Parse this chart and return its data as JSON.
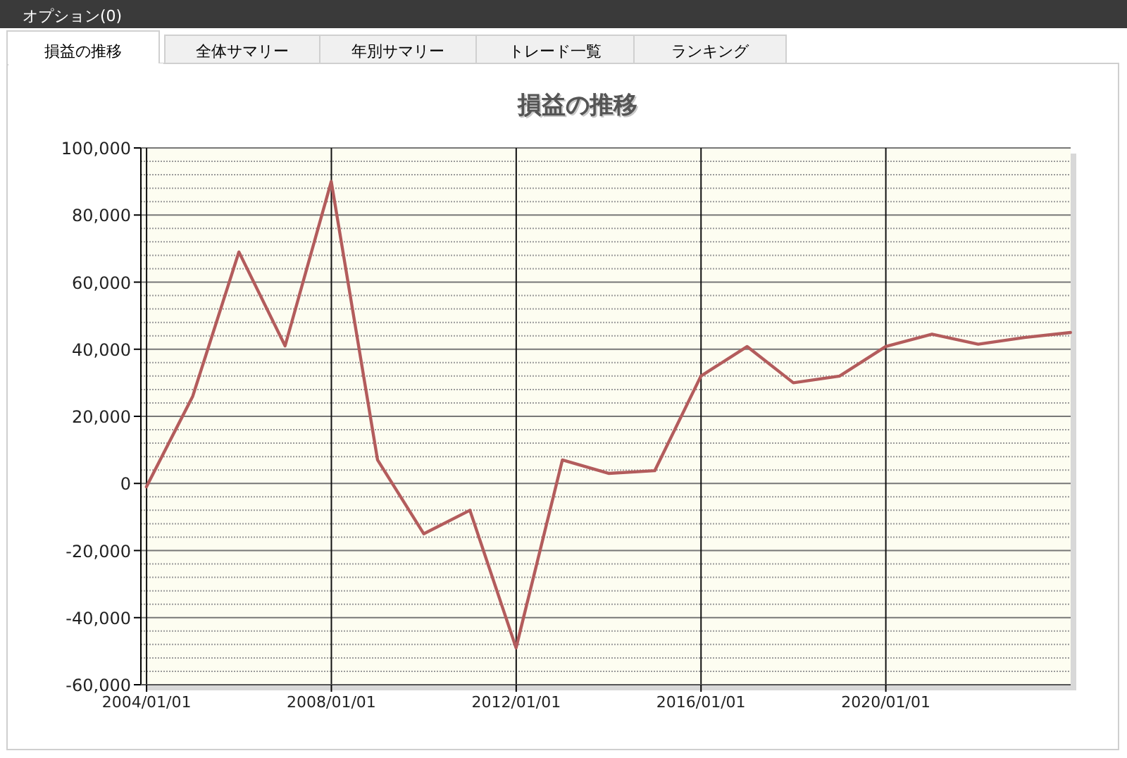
{
  "chart_data": {
    "type": "line",
    "title": "損益の推移",
    "annotations": [
      "オプション(0)",
      "損益の推移",
      "全体サマリー",
      "年別サマリー",
      "トレード一覧",
      "ランキング"
    ],
    "x": [
      "2003-12-31",
      "2004-12-31",
      "2005-12-31",
      "2006-12-31",
      "2007-12-31",
      "2008-12-31",
      "2009-12-31",
      "2010-12-31",
      "2011-12-31",
      "2012-12-31",
      "2013-12-31",
      "2014-12-31",
      "2015-12-31",
      "2016-12-31",
      "2017-12-31",
      "2018-12-31",
      "2019-12-31",
      "2020-12-31",
      "2021-12-31",
      "2022-12-31",
      "2023-12-31"
    ],
    "series": [
      {
        "color": "#b35c5c",
        "values": [
          -1000,
          26000,
          69000,
          41000,
          90000,
          7000,
          -15000,
          -8000,
          -49000,
          7000,
          3000,
          3800,
          32000,
          40800,
          30000,
          32000,
          40800,
          44500,
          41500,
          43500,
          45000
        ]
      }
    ],
    "xlim": [
      "2003-11-17",
      "2024-01-01"
    ],
    "xticks": [
      {
        "value": "2004-01-01",
        "label": "2004/01/01"
      },
      {
        "value": "2008-01-01",
        "label": "2008/01/01"
      },
      {
        "value": "2012-01-01",
        "label": "2012/01/01"
      },
      {
        "value": "2016-01-01",
        "label": "2016/01/01"
      },
      {
        "value": "2020-01-01",
        "label": "2020/01/01"
      }
    ],
    "ylim": [
      -60000,
      100000
    ],
    "yticks": [
      {
        "value": -60000,
        "label": "-60,000"
      },
      {
        "value": -40000,
        "label": "-40,000"
      },
      {
        "value": -20000,
        "label": "-20,000"
      },
      0,
      {
        "value": 20000,
        "label": "20,000"
      },
      {
        "value": 40000,
        "label": "40,000"
      },
      {
        "value": 60000,
        "label": "60,000"
      },
      {
        "value": 80000,
        "label": "80,000"
      },
      {
        "value": 100000,
        "label": "100,000"
      }
    ],
    "grid": true,
    "line_style": "solid",
    "marker": "none"
  }
}
